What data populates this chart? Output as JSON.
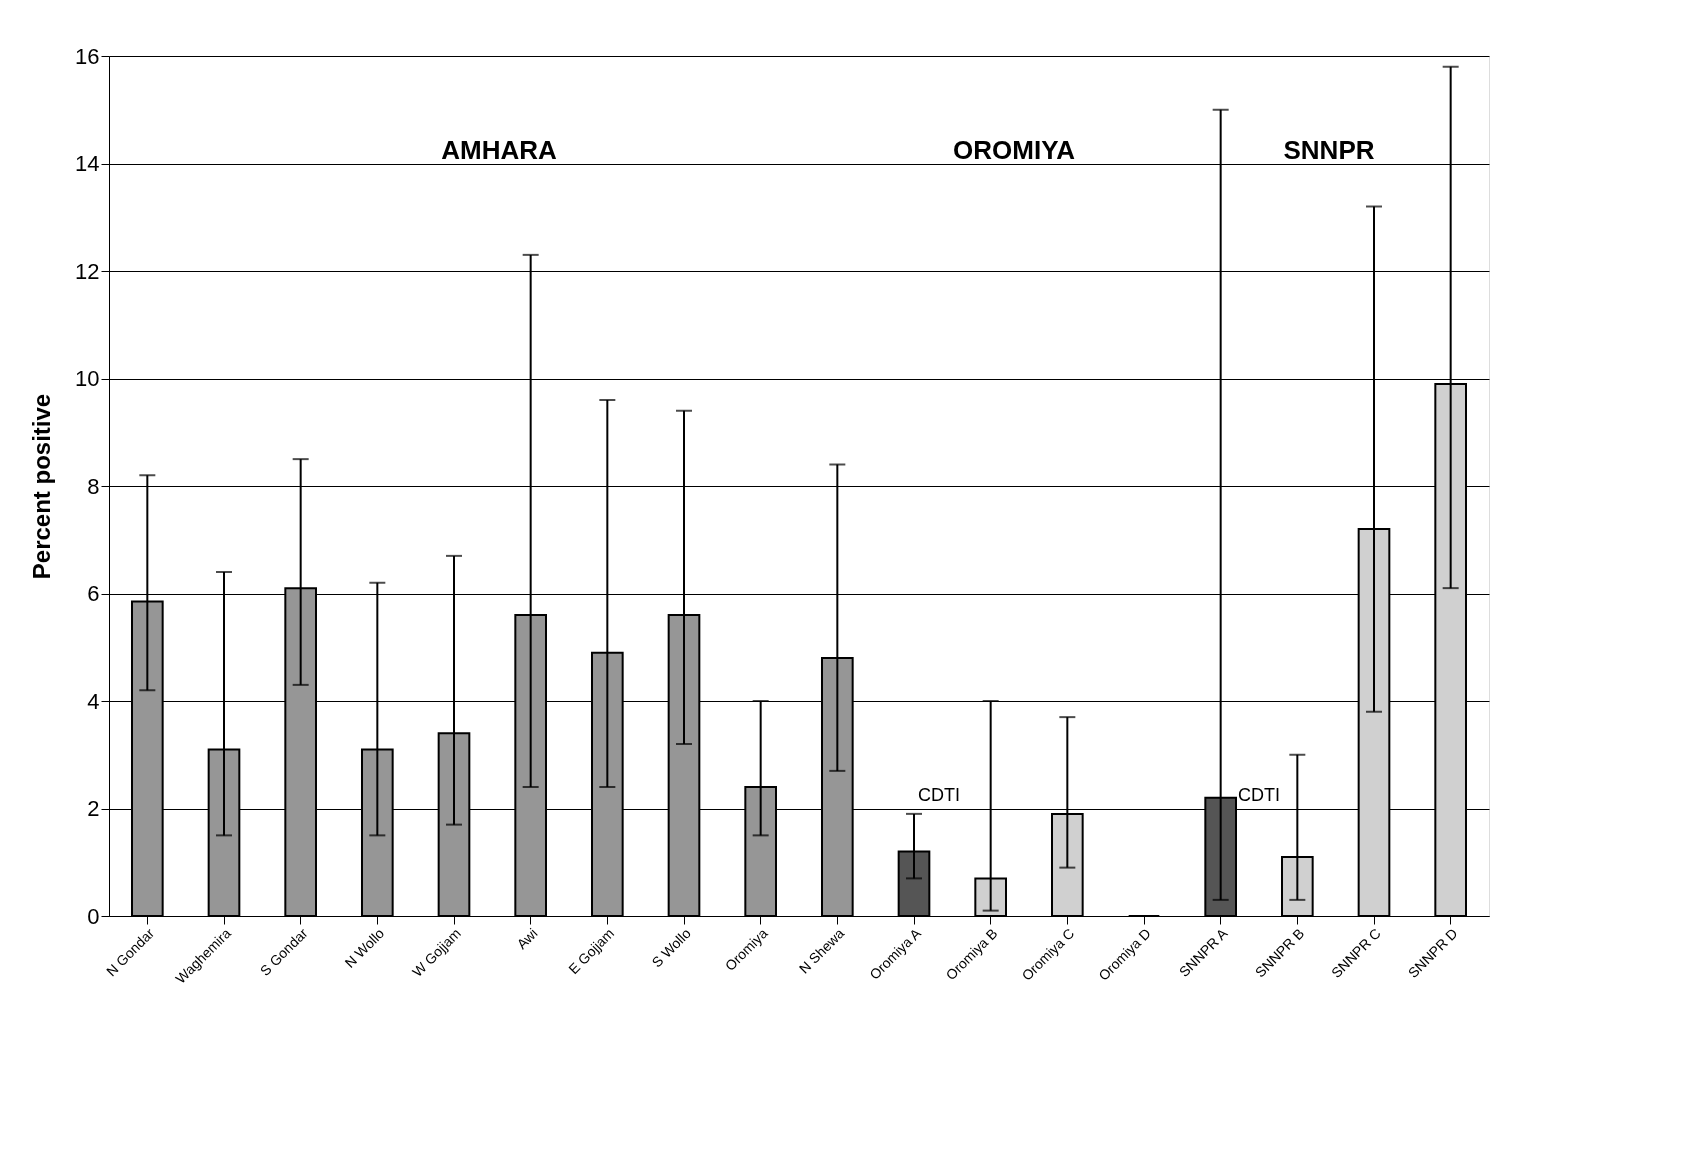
{
  "chart_data": {
    "type": "bar",
    "ylabel": "Percent positive",
    "categories": [
      "N Gondar",
      "Waghemira",
      "S Gondar",
      "N Wollo",
      "W Gojjam",
      "Awi",
      "E Gojjam",
      "S Wollo",
      "Oromiya",
      "N Shewa",
      "Oromiya A",
      "Oromiya B",
      "Oromiya C",
      "Oromiya D",
      "SNNPR A",
      "SNNPR B",
      "SNNPR C",
      "SNNPR D"
    ],
    "values": [
      5.85,
      3.1,
      6.1,
      3.1,
      3.4,
      5.6,
      4.9,
      5.6,
      2.4,
      4.8,
      1.2,
      0.7,
      1.9,
      0,
      2.2,
      1.1,
      7.2,
      9.9
    ],
    "colors": [
      "#969696",
      "#969696",
      "#969696",
      "#969696",
      "#969696",
      "#969696",
      "#969696",
      "#969696",
      "#969696",
      "#969696",
      "#555555",
      "#d0d0d0",
      "#d0d0d0",
      "#000000",
      "#555555",
      "#d0d0d0",
      "#d0d0d0",
      "#d0d0d0"
    ],
    "errors": [
      [
        4.2,
        8.2
      ],
      [
        1.5,
        6.4
      ],
      [
        4.3,
        8.5
      ],
      [
        1.5,
        6.2
      ],
      [
        1.7,
        6.7
      ],
      [
        2.4,
        12.3
      ],
      [
        2.4,
        9.6
      ],
      [
        3.2,
        9.4
      ],
      [
        1.5,
        4.0
      ],
      [
        2.7,
        8.4
      ],
      [
        0.7,
        1.9
      ],
      [
        0.1,
        4.0
      ],
      [
        0.9,
        3.7
      ],
      null,
      [
        0.3,
        15.0
      ],
      [
        0.3,
        3.0
      ],
      [
        3.8,
        13.2
      ],
      [
        6.1,
        15.8
      ]
    ],
    "ylim": [
      0,
      16
    ],
    "yticks": [
      0,
      2,
      4,
      6,
      8,
      10,
      12,
      14,
      16
    ],
    "grid": "y",
    "annotations": [
      "AMHARA",
      "OROMIYA",
      "SNNPR",
      "CDTI",
      "CDTI"
    ]
  }
}
